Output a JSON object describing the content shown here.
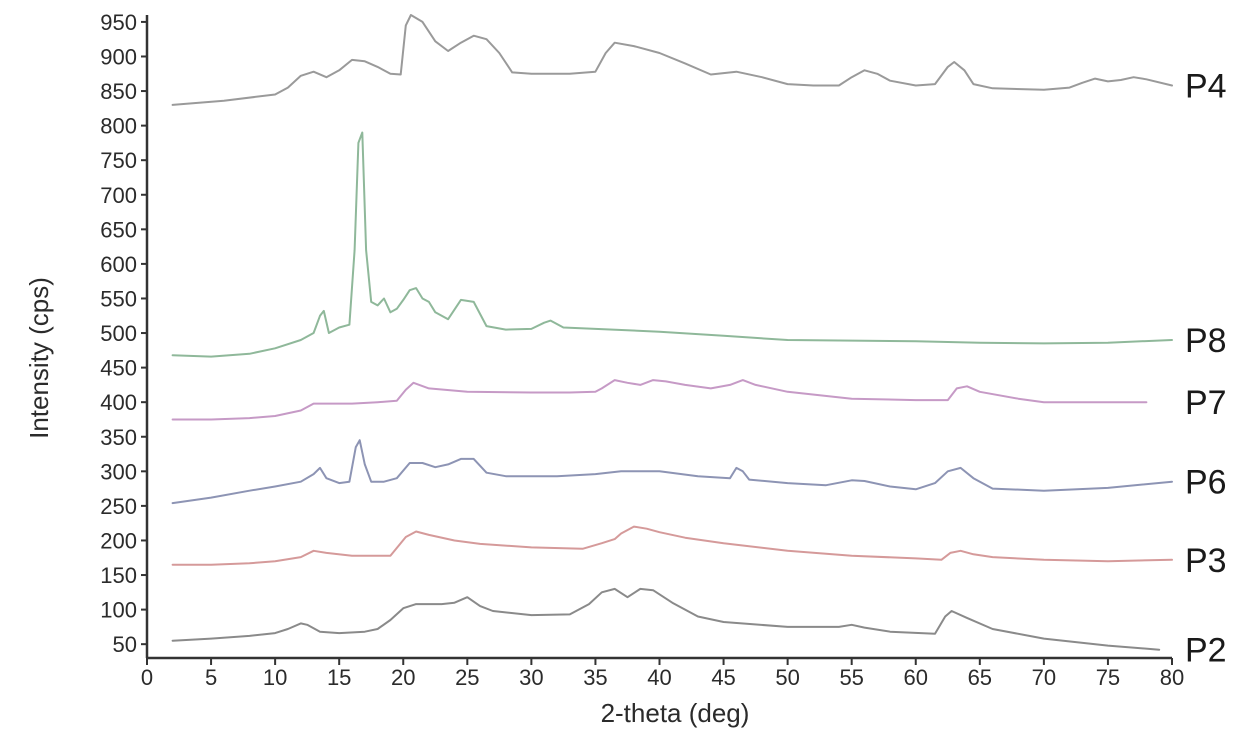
{
  "chart_data": {
    "type": "line",
    "xlabel": "2-theta (deg)",
    "ylabel": "Intensity (cps)",
    "xlim": [
      0,
      80
    ],
    "ylim": [
      30,
      960
    ],
    "x_ticks": [
      0,
      5,
      10,
      15,
      20,
      25,
      30,
      35,
      40,
      45,
      50,
      55,
      60,
      65,
      70,
      75,
      80
    ],
    "y_ticks": [
      50,
      100,
      150,
      200,
      250,
      300,
      350,
      400,
      450,
      500,
      550,
      600,
      650,
      700,
      750,
      800,
      850,
      900,
      950
    ],
    "grid": false,
    "legend": "series labels placed at right end of each trace",
    "series": [
      {
        "name": "P4",
        "color": "#9a9a9a",
        "points": [
          [
            2,
            830
          ],
          [
            6,
            836
          ],
          [
            10,
            845
          ],
          [
            11,
            855
          ],
          [
            12,
            872
          ],
          [
            13,
            878
          ],
          [
            14,
            870
          ],
          [
            15,
            880
          ],
          [
            16,
            895
          ],
          [
            17,
            893
          ],
          [
            18,
            885
          ],
          [
            19,
            875
          ],
          [
            19.8,
            874
          ],
          [
            20.2,
            945
          ],
          [
            20.6,
            960
          ],
          [
            21.5,
            950
          ],
          [
            22.5,
            922
          ],
          [
            23.5,
            908
          ],
          [
            24.5,
            920
          ],
          [
            25.5,
            930
          ],
          [
            26.5,
            925
          ],
          [
            27.5,
            905
          ],
          [
            28.5,
            877
          ],
          [
            30,
            875
          ],
          [
            33,
            875
          ],
          [
            35,
            878
          ],
          [
            35.8,
            905
          ],
          [
            36.5,
            920
          ],
          [
            38,
            915
          ],
          [
            40,
            905
          ],
          [
            42,
            890
          ],
          [
            44,
            874
          ],
          [
            46,
            878
          ],
          [
            48,
            870
          ],
          [
            50,
            860
          ],
          [
            52,
            858
          ],
          [
            54,
            858
          ],
          [
            55,
            870
          ],
          [
            56,
            880
          ],
          [
            57,
            875
          ],
          [
            58,
            865
          ],
          [
            60,
            858
          ],
          [
            61.5,
            860
          ],
          [
            62.5,
            885
          ],
          [
            63,
            892
          ],
          [
            63.8,
            880
          ],
          [
            64.5,
            860
          ],
          [
            66,
            854
          ],
          [
            70,
            852
          ],
          [
            72,
            855
          ],
          [
            73,
            862
          ],
          [
            74,
            868
          ],
          [
            75,
            864
          ],
          [
            76,
            866
          ],
          [
            77,
            870
          ],
          [
            78,
            867
          ],
          [
            80,
            858
          ]
        ]
      },
      {
        "name": "P8",
        "color": "#8fb89a",
        "points": [
          [
            2,
            468
          ],
          [
            5,
            466
          ],
          [
            8,
            470
          ],
          [
            10,
            478
          ],
          [
            12,
            490
          ],
          [
            13,
            500
          ],
          [
            13.5,
            525
          ],
          [
            13.8,
            532
          ],
          [
            14.2,
            500
          ],
          [
            15,
            508
          ],
          [
            15.8,
            512
          ],
          [
            16.2,
            620
          ],
          [
            16.5,
            775
          ],
          [
            16.8,
            790
          ],
          [
            17.1,
            620
          ],
          [
            17.5,
            545
          ],
          [
            18,
            540
          ],
          [
            18.5,
            550
          ],
          [
            19,
            530
          ],
          [
            19.5,
            535
          ],
          [
            20,
            548
          ],
          [
            20.5,
            562
          ],
          [
            21,
            565
          ],
          [
            21.5,
            550
          ],
          [
            22,
            545
          ],
          [
            22.5,
            530
          ],
          [
            23.5,
            520
          ],
          [
            24.5,
            548
          ],
          [
            25.5,
            545
          ],
          [
            26.5,
            510
          ],
          [
            28,
            505
          ],
          [
            30,
            506
          ],
          [
            31,
            515
          ],
          [
            31.5,
            518
          ],
          [
            32.5,
            508
          ],
          [
            35,
            506
          ],
          [
            40,
            502
          ],
          [
            45,
            496
          ],
          [
            50,
            490
          ],
          [
            55,
            489
          ],
          [
            60,
            488
          ],
          [
            65,
            486
          ],
          [
            70,
            485
          ],
          [
            75,
            486
          ],
          [
            80,
            490
          ]
        ]
      },
      {
        "name": "P7",
        "color": "#c69ac6",
        "points": [
          [
            2,
            375
          ],
          [
            5,
            375
          ],
          [
            8,
            377
          ],
          [
            10,
            380
          ],
          [
            12,
            388
          ],
          [
            13,
            398
          ],
          [
            14,
            398
          ],
          [
            16,
            398
          ],
          [
            18,
            400
          ],
          [
            19.5,
            402
          ],
          [
            20.2,
            418
          ],
          [
            20.8,
            428
          ],
          [
            22,
            420
          ],
          [
            25,
            415
          ],
          [
            30,
            414
          ],
          [
            33,
            414
          ],
          [
            35,
            415
          ],
          [
            35.5,
            420
          ],
          [
            36.5,
            432
          ],
          [
            37.5,
            428
          ],
          [
            38.5,
            425
          ],
          [
            39.5,
            432
          ],
          [
            40.5,
            430
          ],
          [
            42,
            425
          ],
          [
            44,
            420
          ],
          [
            45.5,
            425
          ],
          [
            46.5,
            432
          ],
          [
            47.5,
            425
          ],
          [
            50,
            415
          ],
          [
            55,
            405
          ],
          [
            60,
            403
          ],
          [
            62.5,
            403
          ],
          [
            63.2,
            420
          ],
          [
            64,
            423
          ],
          [
            65,
            415
          ],
          [
            68,
            405
          ],
          [
            70,
            400
          ],
          [
            75,
            400
          ],
          [
            78,
            400
          ]
        ]
      },
      {
        "name": "P6",
        "color": "#8d94b4",
        "points": [
          [
            2,
            254
          ],
          [
            5,
            262
          ],
          [
            8,
            272
          ],
          [
            10,
            278
          ],
          [
            12,
            285
          ],
          [
            13,
            296
          ],
          [
            13.5,
            305
          ],
          [
            14,
            290
          ],
          [
            15,
            283
          ],
          [
            15.8,
            285
          ],
          [
            16.3,
            335
          ],
          [
            16.6,
            345
          ],
          [
            17,
            310
          ],
          [
            17.5,
            285
          ],
          [
            18.5,
            285
          ],
          [
            19.5,
            290
          ],
          [
            20.5,
            312
          ],
          [
            21.5,
            312
          ],
          [
            22.5,
            306
          ],
          [
            23.5,
            310
          ],
          [
            24.5,
            318
          ],
          [
            25.5,
            318
          ],
          [
            26.5,
            298
          ],
          [
            28,
            293
          ],
          [
            30,
            293
          ],
          [
            32,
            293
          ],
          [
            35,
            296
          ],
          [
            37,
            300
          ],
          [
            40,
            300
          ],
          [
            43,
            293
          ],
          [
            45.5,
            290
          ],
          [
            46,
            305
          ],
          [
            46.5,
            300
          ],
          [
            47,
            288
          ],
          [
            50,
            283
          ],
          [
            53,
            280
          ],
          [
            55,
            287
          ],
          [
            56,
            286
          ],
          [
            58,
            278
          ],
          [
            60,
            274
          ],
          [
            61.5,
            283
          ],
          [
            62.5,
            300
          ],
          [
            63.5,
            305
          ],
          [
            64.5,
            290
          ],
          [
            66,
            275
          ],
          [
            70,
            272
          ],
          [
            75,
            276
          ],
          [
            80,
            285
          ]
        ]
      },
      {
        "name": "P3",
        "color": "#d59a9a",
        "points": [
          [
            2,
            165
          ],
          [
            5,
            165
          ],
          [
            8,
            167
          ],
          [
            10,
            170
          ],
          [
            12,
            176
          ],
          [
            13,
            185
          ],
          [
            14,
            182
          ],
          [
            16,
            178
          ],
          [
            19,
            178
          ],
          [
            20.2,
            205
          ],
          [
            21,
            213
          ],
          [
            22,
            208
          ],
          [
            24,
            200
          ],
          [
            26,
            195
          ],
          [
            30,
            190
          ],
          [
            34,
            188
          ],
          [
            35.5,
            196
          ],
          [
            36.5,
            202
          ],
          [
            37,
            210
          ],
          [
            38,
            220
          ],
          [
            39,
            217
          ],
          [
            40,
            212
          ],
          [
            42,
            204
          ],
          [
            45,
            196
          ],
          [
            50,
            185
          ],
          [
            55,
            178
          ],
          [
            60,
            174
          ],
          [
            62,
            172
          ],
          [
            62.7,
            182
          ],
          [
            63.5,
            185
          ],
          [
            64.5,
            180
          ],
          [
            66,
            176
          ],
          [
            70,
            172
          ],
          [
            75,
            170
          ],
          [
            80,
            172
          ]
        ]
      },
      {
        "name": "P2",
        "color": "#8a8a8a",
        "points": [
          [
            2,
            55
          ],
          [
            5,
            58
          ],
          [
            8,
            62
          ],
          [
            10,
            66
          ],
          [
            11,
            72
          ],
          [
            12,
            80
          ],
          [
            12.5,
            78
          ],
          [
            13.5,
            68
          ],
          [
            15,
            66
          ],
          [
            17,
            68
          ],
          [
            18,
            72
          ],
          [
            19,
            85
          ],
          [
            20,
            102
          ],
          [
            21,
            108
          ],
          [
            23,
            108
          ],
          [
            24,
            110
          ],
          [
            25,
            118
          ],
          [
            26,
            105
          ],
          [
            27,
            98
          ],
          [
            30,
            92
          ],
          [
            33,
            93
          ],
          [
            34.5,
            108
          ],
          [
            35.5,
            125
          ],
          [
            36.5,
            130
          ],
          [
            37.5,
            118
          ],
          [
            38.5,
            130
          ],
          [
            39.5,
            128
          ],
          [
            41,
            110
          ],
          [
            43,
            90
          ],
          [
            45,
            82
          ],
          [
            50,
            75
          ],
          [
            54,
            75
          ],
          [
            55,
            78
          ],
          [
            56,
            74
          ],
          [
            58,
            68
          ],
          [
            61.5,
            65
          ],
          [
            62.3,
            90
          ],
          [
            62.8,
            98
          ],
          [
            64,
            88
          ],
          [
            66,
            72
          ],
          [
            70,
            58
          ],
          [
            75,
            48
          ],
          [
            79,
            42
          ]
        ]
      }
    ]
  }
}
